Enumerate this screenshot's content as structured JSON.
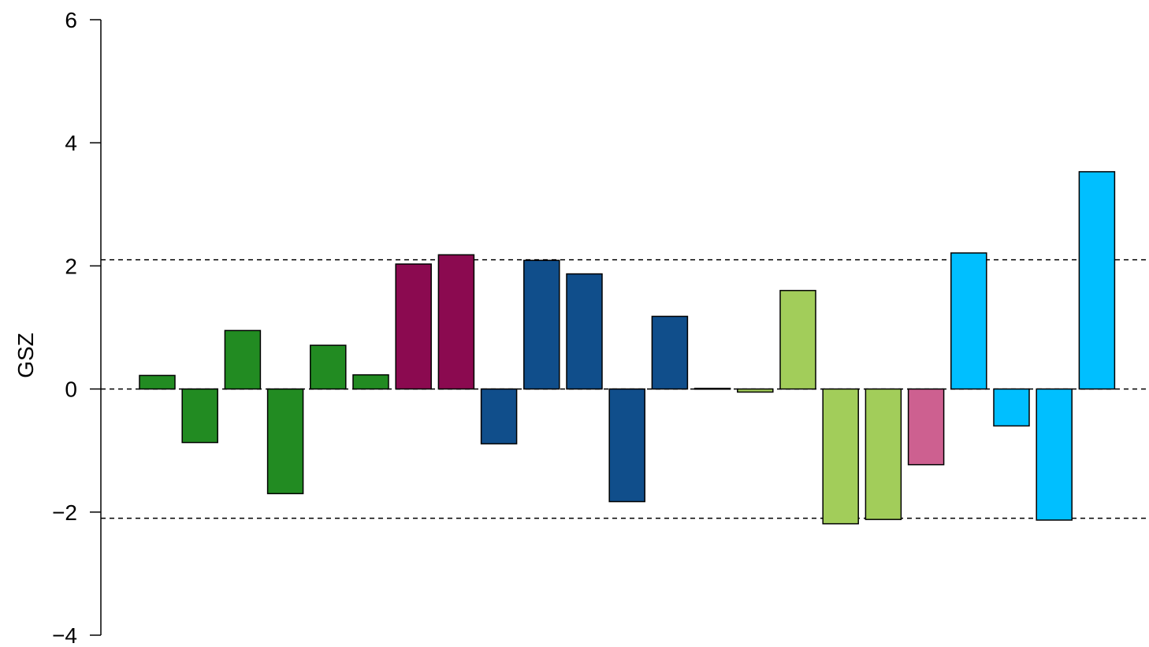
{
  "chart_data": {
    "type": "bar",
    "ylabel": "GSZ",
    "ylim": [
      -4,
      6
    ],
    "yticks": [
      -4,
      -2,
      0,
      2,
      4,
      6
    ],
    "ytick_labels": [
      "−4",
      "−2",
      "0",
      "2",
      "4",
      "6"
    ],
    "grid": false,
    "reference_lines": [
      2.1,
      0,
      -2.1
    ],
    "values": [
      0.22,
      -0.87,
      0.95,
      -1.7,
      0.71,
      0.23,
      2.03,
      2.18,
      -0.89,
      2.09,
      1.87,
      -1.83,
      1.18,
      0.01,
      -0.05,
      1.6,
      -2.19,
      -2.12,
      -1.23,
      2.21,
      -0.6,
      -2.13,
      3.53
    ],
    "colors": [
      "#228B22",
      "#228B22",
      "#228B22",
      "#228B22",
      "#228B22",
      "#228B22",
      "#8B0A50",
      "#8B0A50",
      "#104E8B",
      "#104E8B",
      "#104E8B",
      "#104E8B",
      "#104E8B",
      "#A2CD5A",
      "#A2CD5A",
      "#A2CD5A",
      "#A2CD5A",
      "#A2CD5A",
      "#CD6090",
      "#00BFFF",
      "#00BFFF",
      "#00BFFF",
      "#00BFFF"
    ]
  }
}
